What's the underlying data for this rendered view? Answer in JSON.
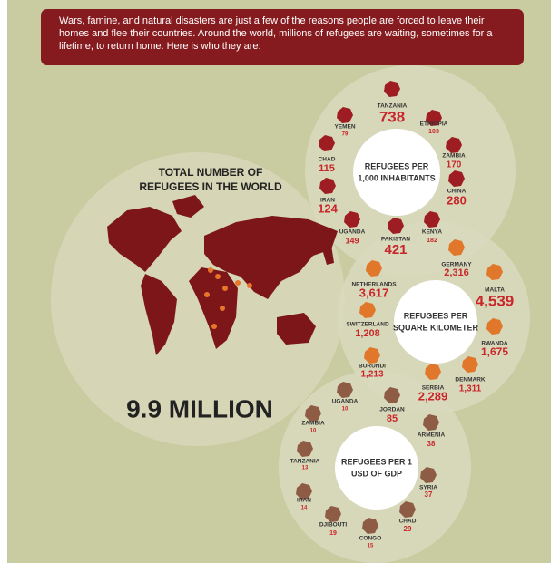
{
  "intro": "Wars, famine, and natural disasters are just a few of the reasons people are forced to leave their homes and flee their countries. Around the world, millions of refugees are waiting, sometimes for a lifetime, to return home. Here is who they are:",
  "world": {
    "title": [
      "TOTAL NUMBER OF",
      "REFUGEES IN THE WORLD"
    ],
    "total": "9.9 MILLION"
  },
  "groups": [
    {
      "center_label": [
        "REFUGEES PER",
        "1,000 INHABITANTS"
      ],
      "countries": [
        {
          "name": "TANZANIA",
          "value": "738"
        },
        {
          "name": "YEMEN",
          "value": "79"
        },
        {
          "name": "ETHIOPIA",
          "value": "103"
        },
        {
          "name": "CHAD",
          "value": "115"
        },
        {
          "name": "ZAMBIA",
          "value": "170"
        },
        {
          "name": "IRAN",
          "value": "124"
        },
        {
          "name": "CHINA",
          "value": "280"
        },
        {
          "name": "UGANDA",
          "value": "149"
        },
        {
          "name": "KENYA",
          "value": "182"
        },
        {
          "name": "PAKISTAN",
          "value": "421"
        }
      ]
    },
    {
      "center_label": [
        "REFUGEES PER",
        "SQUARE KILOMETER"
      ],
      "countries": [
        {
          "name": "GERMANY",
          "value": "2,316"
        },
        {
          "name": "NETHERLANDS",
          "value": "3,617"
        },
        {
          "name": "MALTA",
          "value": "4,539"
        },
        {
          "name": "SWITZERLAND",
          "value": "1,208"
        },
        {
          "name": "RWANDA",
          "value": "1,675"
        },
        {
          "name": "BURUNDI",
          "value": "1,213"
        },
        {
          "name": "DENMARK",
          "value": "1,311"
        },
        {
          "name": "SERBIA",
          "value": "2,289"
        }
      ]
    },
    {
      "center_label": [
        "REFUGEES PER 1",
        "USD OF GDP"
      ],
      "countries": [
        {
          "name": "UGANDA",
          "value": "10"
        },
        {
          "name": "JORDAN",
          "value": "85"
        },
        {
          "name": "ZAMBIA",
          "value": "10"
        },
        {
          "name": "ARMENIA",
          "value": "38"
        },
        {
          "name": "TANZANIA",
          "value": "13"
        },
        {
          "name": "SYRIA",
          "value": "37"
        },
        {
          "name": "IRAN",
          "value": "14"
        },
        {
          "name": "CHAD",
          "value": "29"
        },
        {
          "name": "DJIBOUTI",
          "value": "19"
        },
        {
          "name": "CONGO",
          "value": "15"
        }
      ]
    }
  ]
}
